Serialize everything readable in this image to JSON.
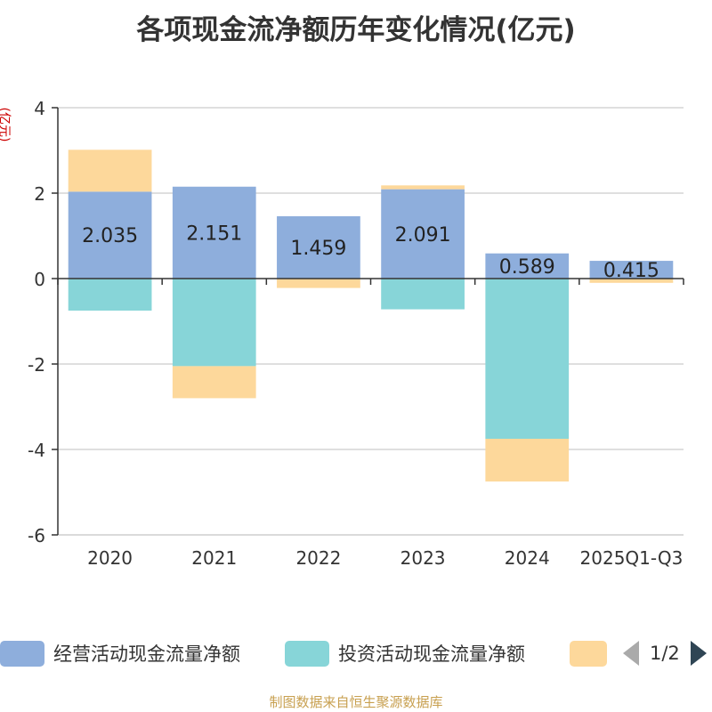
{
  "chart_data": {
    "type": "bar",
    "stacked": true,
    "title": "各项现金流净额历年变化情况(亿元)",
    "ylabel": "(亿元)",
    "ylim": [
      -6,
      4
    ],
    "yticks": [
      4,
      2,
      0,
      -2,
      -4,
      -6
    ],
    "categories": [
      "2020",
      "2021",
      "2022",
      "2023",
      "2024",
      "2025Q1-Q3"
    ],
    "series": [
      {
        "name": "经营活动现金流量净额",
        "color": "#8eaedc",
        "values": [
          2.035,
          2.151,
          1.459,
          2.091,
          0.589,
          0.415
        ],
        "show_labels": true
      },
      {
        "name": "投资活动现金流量净额",
        "color": "#87d5d8",
        "values": [
          -0.75,
          -2.05,
          0,
          -0.72,
          -3.75,
          0
        ],
        "show_labels": false
      },
      {
        "name": "",
        "color": "#fdd89b",
        "values": [
          0.98,
          -0.75,
          -0.22,
          0.09,
          -1.0,
          -0.1
        ],
        "show_labels": false
      }
    ],
    "grid": true,
    "legend_position": "bottom"
  },
  "legend": {
    "page_indicator": "1/2"
  },
  "source": "制图数据来自恒生聚源数据库"
}
